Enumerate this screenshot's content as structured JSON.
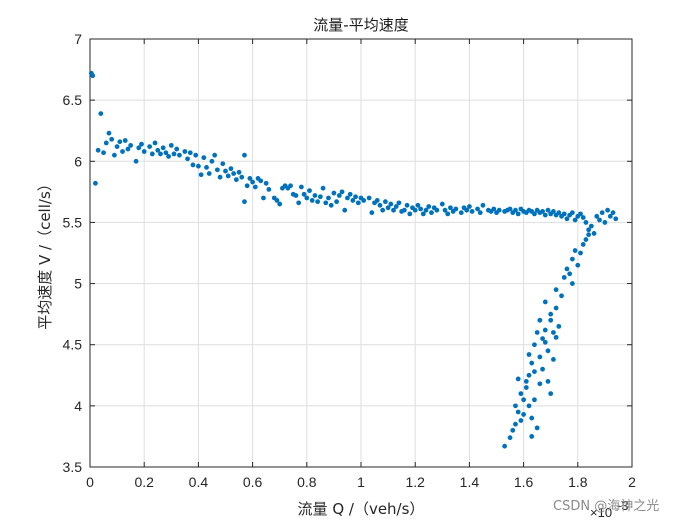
{
  "chart_data": {
    "type": "scatter",
    "title": "流量-平均速度",
    "xlabel": "流量 Q /（veh/s）",
    "ylabel": "平均速度 V /（cell/s）",
    "xlim": [
      0,
      2
    ],
    "ylim": [
      3.5,
      7
    ],
    "x_ticks": [
      "0",
      "0.2",
      "0.4",
      "0.6",
      "0.8",
      "1",
      "1.2",
      "1.4",
      "1.6",
      "1.8",
      "2"
    ],
    "y_ticks": [
      "3.5",
      "4",
      "4.5",
      "5",
      "5.5",
      "6",
      "6.5",
      "7"
    ],
    "x_exponent_label": "×10",
    "x_exponent_power": "-3",
    "grid": true,
    "marker_color": "#0072BD",
    "series": [
      {
        "points": [
          [
            0.005,
            6.72
          ],
          [
            0.01,
            6.7
          ],
          [
            0.02,
            5.82
          ],
          [
            0.03,
            6.09
          ],
          [
            0.04,
            6.39
          ],
          [
            0.05,
            6.07
          ],
          [
            0.06,
            6.15
          ],
          [
            0.07,
            6.23
          ],
          [
            0.08,
            6.18
          ],
          [
            0.09,
            6.05
          ],
          [
            0.1,
            6.12
          ],
          [
            0.11,
            6.16
          ],
          [
            0.12,
            6.08
          ],
          [
            0.13,
            6.17
          ],
          [
            0.14,
            6.1
          ],
          [
            0.15,
            6.13
          ],
          [
            0.17,
            6.0
          ],
          [
            0.18,
            6.11
          ],
          [
            0.19,
            6.14
          ],
          [
            0.2,
            6.08
          ],
          [
            0.22,
            6.12
          ],
          [
            0.23,
            6.06
          ],
          [
            0.24,
            6.15
          ],
          [
            0.25,
            6.09
          ],
          [
            0.26,
            6.06
          ],
          [
            0.27,
            6.11
          ],
          [
            0.28,
            6.07
          ],
          [
            0.29,
            6.04
          ],
          [
            0.3,
            6.13
          ],
          [
            0.31,
            6.06
          ],
          [
            0.32,
            6.1
          ],
          [
            0.33,
            6.05
          ],
          [
            0.35,
            6.08
          ],
          [
            0.36,
            6.02
          ],
          [
            0.37,
            6.07
          ],
          [
            0.38,
            5.97
          ],
          [
            0.39,
            6.05
          ],
          [
            0.4,
            5.96
          ],
          [
            0.41,
            5.89
          ],
          [
            0.42,
            6.03
          ],
          [
            0.43,
            5.95
          ],
          [
            0.44,
            5.9
          ],
          [
            0.45,
            6.0
          ],
          [
            0.46,
            6.05
          ],
          [
            0.47,
            5.93
          ],
          [
            0.48,
            5.87
          ],
          [
            0.49,
            5.98
          ],
          [
            0.5,
            5.92
          ],
          [
            0.51,
            5.88
          ],
          [
            0.52,
            5.94
          ],
          [
            0.53,
            5.9
          ],
          [
            0.54,
            5.85
          ],
          [
            0.55,
            5.91
          ],
          [
            0.56,
            5.87
          ],
          [
            0.57,
            6.05
          ],
          [
            0.57,
            5.67
          ],
          [
            0.58,
            5.8
          ],
          [
            0.59,
            5.86
          ],
          [
            0.6,
            5.83
          ],
          [
            0.61,
            5.79
          ],
          [
            0.62,
            5.86
          ],
          [
            0.63,
            5.84
          ],
          [
            0.64,
            5.7
          ],
          [
            0.65,
            5.82
          ],
          [
            0.66,
            5.77
          ],
          [
            0.68,
            5.7
          ],
          [
            0.69,
            5.68
          ],
          [
            0.7,
            5.65
          ],
          [
            0.71,
            5.78
          ],
          [
            0.72,
            5.8
          ],
          [
            0.73,
            5.78
          ],
          [
            0.74,
            5.8
          ],
          [
            0.75,
            5.73
          ],
          [
            0.76,
            5.72
          ],
          [
            0.77,
            5.66
          ],
          [
            0.78,
            5.79
          ],
          [
            0.79,
            5.73
          ],
          [
            0.8,
            5.7
          ],
          [
            0.81,
            5.76
          ],
          [
            0.82,
            5.68
          ],
          [
            0.83,
            5.72
          ],
          [
            0.84,
            5.67
          ],
          [
            0.85,
            5.71
          ],
          [
            0.86,
            5.78
          ],
          [
            0.87,
            5.66
          ],
          [
            0.88,
            5.7
          ],
          [
            0.89,
            5.64
          ],
          [
            0.9,
            5.74
          ],
          [
            0.91,
            5.67
          ],
          [
            0.92,
            5.72
          ],
          [
            0.93,
            5.75
          ],
          [
            0.94,
            5.6
          ],
          [
            0.95,
            5.7
          ],
          [
            0.96,
            5.73
          ],
          [
            0.97,
            5.68
          ],
          [
            0.98,
            5.71
          ],
          [
            0.99,
            5.66
          ],
          [
            1.0,
            5.7
          ],
          [
            1.01,
            5.68
          ],
          [
            1.03,
            5.7
          ],
          [
            1.04,
            5.58
          ],
          [
            1.05,
            5.66
          ],
          [
            1.06,
            5.68
          ],
          [
            1.07,
            5.64
          ],
          [
            1.08,
            5.6
          ],
          [
            1.09,
            5.67
          ],
          [
            1.1,
            5.62
          ],
          [
            1.11,
            5.65
          ],
          [
            1.12,
            5.6
          ],
          [
            1.13,
            5.63
          ],
          [
            1.14,
            5.66
          ],
          [
            1.15,
            5.59
          ],
          [
            1.16,
            5.6
          ],
          [
            1.17,
            5.64
          ],
          [
            1.18,
            5.57
          ],
          [
            1.19,
            5.62
          ],
          [
            1.2,
            5.6
          ],
          [
            1.21,
            5.64
          ],
          [
            1.22,
            5.61
          ],
          [
            1.23,
            5.57
          ],
          [
            1.24,
            5.6
          ],
          [
            1.25,
            5.63
          ],
          [
            1.26,
            5.58
          ],
          [
            1.27,
            5.62
          ],
          [
            1.28,
            5.6
          ],
          [
            1.3,
            5.65
          ],
          [
            1.31,
            5.6
          ],
          [
            1.32,
            5.57
          ],
          [
            1.33,
            5.62
          ],
          [
            1.34,
            5.59
          ],
          [
            1.35,
            5.61
          ],
          [
            1.37,
            5.58
          ],
          [
            1.38,
            5.62
          ],
          [
            1.39,
            5.6
          ],
          [
            1.4,
            5.63
          ],
          [
            1.41,
            5.59
          ],
          [
            1.43,
            5.61
          ],
          [
            1.44,
            5.58
          ],
          [
            1.45,
            5.64
          ],
          [
            1.47,
            5.6
          ],
          [
            1.48,
            5.59
          ],
          [
            1.49,
            5.61
          ],
          [
            1.5,
            5.58
          ],
          [
            1.51,
            5.6
          ],
          [
            1.53,
            5.59
          ],
          [
            1.54,
            5.6
          ],
          [
            1.55,
            5.61
          ],
          [
            1.56,
            5.58
          ],
          [
            1.57,
            5.6
          ],
          [
            1.58,
            5.57
          ],
          [
            1.59,
            5.61
          ],
          [
            1.6,
            5.59
          ],
          [
            1.61,
            5.58
          ],
          [
            1.62,
            5.6
          ],
          [
            1.63,
            5.59
          ],
          [
            1.64,
            5.57
          ],
          [
            1.65,
            5.6
          ],
          [
            1.66,
            5.58
          ],
          [
            1.67,
            5.59
          ],
          [
            1.68,
            5.56
          ],
          [
            1.69,
            5.6
          ],
          [
            1.7,
            5.57
          ],
          [
            1.71,
            5.59
          ],
          [
            1.72,
            5.56
          ],
          [
            1.73,
            5.58
          ],
          [
            1.74,
            5.55
          ],
          [
            1.75,
            5.57
          ],
          [
            1.76,
            5.53
          ],
          [
            1.77,
            5.56
          ],
          [
            1.78,
            5.58
          ],
          [
            1.79,
            5.52
          ],
          [
            1.8,
            5.55
          ],
          [
            1.81,
            5.57
          ],
          [
            1.82,
            5.54
          ],
          [
            1.83,
            5.5
          ],
          [
            1.84,
            5.44
          ],
          [
            1.85,
            5.47
          ],
          [
            1.86,
            5.41
          ],
          [
            1.87,
            5.55
          ],
          [
            1.88,
            5.52
          ],
          [
            1.89,
            5.58
          ],
          [
            1.9,
            5.5
          ],
          [
            1.91,
            5.6
          ],
          [
            1.92,
            5.55
          ],
          [
            1.93,
            5.58
          ],
          [
            1.94,
            5.53
          ],
          [
            1.53,
            3.67
          ],
          [
            1.55,
            3.74
          ],
          [
            1.56,
            3.8
          ],
          [
            1.57,
            3.85
          ],
          [
            1.57,
            4.0
          ],
          [
            1.58,
            3.95
          ],
          [
            1.59,
            3.88
          ],
          [
            1.59,
            4.1
          ],
          [
            1.6,
            4.05
          ],
          [
            1.6,
            3.93
          ],
          [
            1.61,
            4.2
          ],
          [
            1.61,
            4.15
          ],
          [
            1.62,
            4.25
          ],
          [
            1.62,
            4.0
          ],
          [
            1.63,
            3.9
          ],
          [
            1.63,
            4.35
          ],
          [
            1.64,
            4.5
          ],
          [
            1.64,
            4.28
          ],
          [
            1.65,
            3.82
          ],
          [
            1.65,
            4.6
          ],
          [
            1.66,
            4.4
          ],
          [
            1.66,
            4.7
          ],
          [
            1.67,
            4.55
          ],
          [
            1.67,
            4.3
          ],
          [
            1.68,
            4.85
          ],
          [
            1.68,
            4.62
          ],
          [
            1.69,
            4.45
          ],
          [
            1.69,
            4.2
          ],
          [
            1.7,
            4.75
          ],
          [
            1.7,
            4.1
          ],
          [
            1.71,
            4.6
          ],
          [
            1.71,
            4.38
          ],
          [
            1.72,
            4.8
          ],
          [
            1.72,
            4.95
          ],
          [
            1.73,
            4.65
          ],
          [
            1.74,
            4.9
          ],
          [
            1.75,
            5.05
          ],
          [
            1.76,
            5.12
          ],
          [
            1.77,
            5.08
          ],
          [
            1.78,
            5.2
          ],
          [
            1.78,
            5.0
          ],
          [
            1.79,
            5.27
          ],
          [
            1.8,
            5.15
          ],
          [
            1.81,
            5.25
          ],
          [
            1.82,
            5.32
          ],
          [
            1.83,
            5.36
          ],
          [
            1.84,
            5.4
          ],
          [
            1.63,
            3.75
          ],
          [
            1.64,
            4.05
          ],
          [
            1.58,
            4.22
          ],
          [
            1.62,
            4.42
          ],
          [
            1.66,
            4.18
          ],
          [
            1.68,
            4.52
          ],
          [
            1.7,
            4.7
          ],
          [
            1.72,
            4.56
          ]
        ]
      }
    ]
  },
  "watermark": "CSDN @海神之光"
}
